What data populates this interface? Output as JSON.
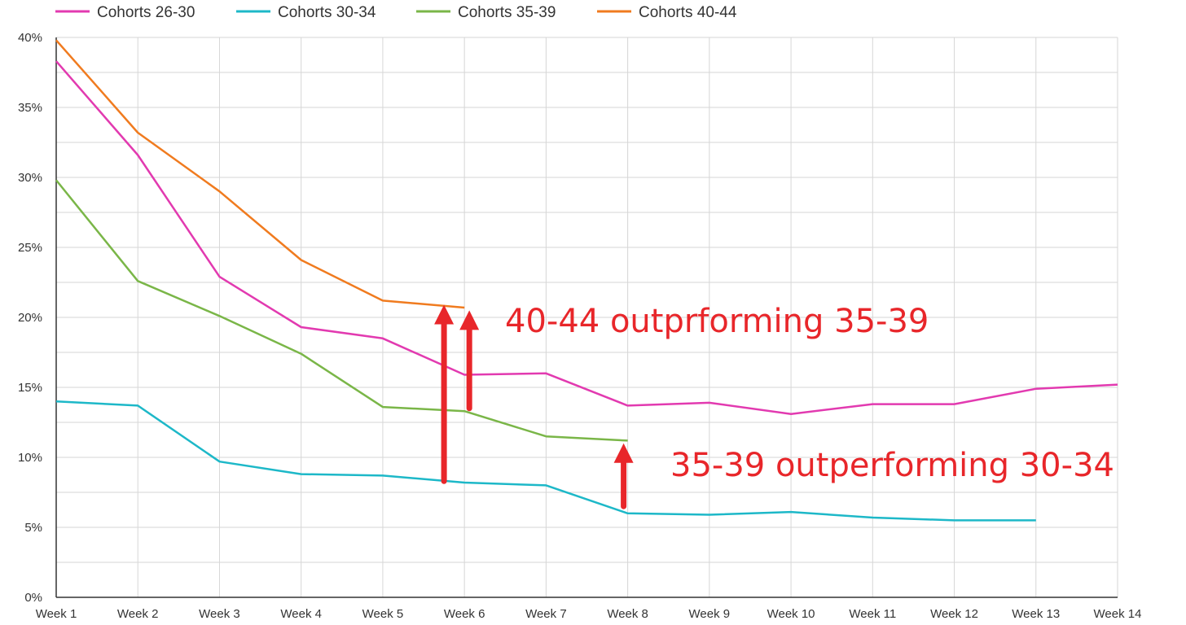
{
  "chart_data": {
    "type": "line",
    "title": "",
    "xlabel": "",
    "ylabel": "",
    "x": [
      "Week 1",
      "Week 2",
      "Week 3",
      "Week 4",
      "Week 5",
      "Week 6",
      "Week 7",
      "Week 8",
      "Week 9",
      "Week 10",
      "Week 11",
      "Week 12",
      "Week 13",
      "Week 14"
    ],
    "ylim": [
      0,
      40
    ],
    "yticks": [
      0,
      5,
      10,
      15,
      20,
      25,
      30,
      35,
      40
    ],
    "ytick_labels": [
      "0%",
      "5%",
      "10%",
      "15%",
      "20%",
      "25%",
      "30%",
      "35%",
      "40%"
    ],
    "grid": true,
    "legend_position": "top-left",
    "series": [
      {
        "name": "Cohorts 26-30",
        "color": "#e23ab0",
        "values": [
          38.3,
          31.6,
          22.9,
          19.3,
          18.5,
          15.9,
          16.0,
          13.7,
          13.9,
          13.1,
          13.8,
          13.8,
          14.9,
          15.2
        ]
      },
      {
        "name": "Cohorts 30-34",
        "color": "#1db8c8",
        "values": [
          14.0,
          13.7,
          9.7,
          8.8,
          8.7,
          8.2,
          8.0,
          6.0,
          5.9,
          6.1,
          5.7,
          5.5,
          5.5,
          null
        ]
      },
      {
        "name": "Cohorts 35-39",
        "color": "#7ab648",
        "values": [
          29.8,
          22.6,
          20.1,
          17.4,
          13.6,
          13.3,
          11.5,
          11.2,
          null,
          null,
          null,
          null,
          null,
          null
        ]
      },
      {
        "name": "Cohorts 40-44",
        "color": "#f07b1f",
        "values": [
          39.8,
          33.2,
          29.0,
          24.1,
          21.2,
          20.7,
          null,
          null,
          null,
          null,
          null,
          null,
          null,
          null
        ]
      }
    ],
    "annotations": [
      {
        "text": "40-44 outprforming 35-39",
        "color": "#e8262a",
        "arrows": [
          {
            "x": 5.75,
            "from": 8.3,
            "to": 20.9
          },
          {
            "x": 6.06,
            "from": 13.5,
            "to": 20.5
          }
        ]
      },
      {
        "text": "35-39 outperforming 30-34",
        "color": "#e8262a",
        "arrows": [
          {
            "x": 7.95,
            "from": 6.5,
            "to": 11.0
          }
        ]
      }
    ]
  }
}
